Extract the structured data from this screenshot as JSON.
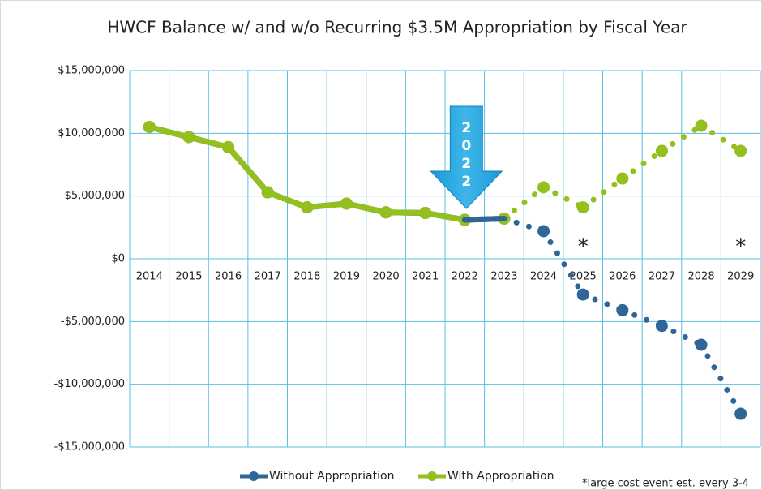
{
  "chart_data": {
    "type": "line",
    "title": "HWCF Balance w/ and w/o Recurring $3.5M Appropriation by Fiscal Year",
    "categories": [
      "2014",
      "2015",
      "2016",
      "2017",
      "2018",
      "2019",
      "2020",
      "2021",
      "2022",
      "2023",
      "2024",
      "2025",
      "2026",
      "2027",
      "2028",
      "2029"
    ],
    "series": [
      {
        "name": "Without Appropriation",
        "color": "#2f6698",
        "values": [
          10500000,
          9700000,
          8900000,
          5300000,
          4100000,
          4400000,
          3700000,
          3650000,
          3100000,
          3200000,
          2200000,
          -2850000,
          -4100000,
          -5350000,
          -6850000,
          -12350000
        ]
      },
      {
        "name": "With Appropriation",
        "color": "#93c01f",
        "values": [
          10500000,
          9700000,
          8900000,
          5300000,
          4100000,
          4400000,
          3700000,
          3650000,
          3100000,
          3200000,
          5700000,
          4100000,
          6400000,
          8600000,
          10600000,
          8600000
        ]
      }
    ],
    "ylim": [
      -15000000,
      15000000
    ],
    "yticks": [
      {
        "value": -15000000,
        "label": "-$15,000,000"
      },
      {
        "value": -10000000,
        "label": "-$10,000,000"
      },
      {
        "value": -5000000,
        "label": "-$5,000,000"
      },
      {
        "value": 0,
        "label": "$0"
      },
      {
        "value": 5000000,
        "label": "$5,000,000"
      },
      {
        "value": 10000000,
        "label": "$10,000,000"
      },
      {
        "value": 15000000,
        "label": "$15,000,000"
      }
    ],
    "grid": true,
    "legend": "bottom",
    "annotations": [
      "2022",
      "*",
      "*",
      "*large cost event est. every 3-4"
    ]
  }
}
